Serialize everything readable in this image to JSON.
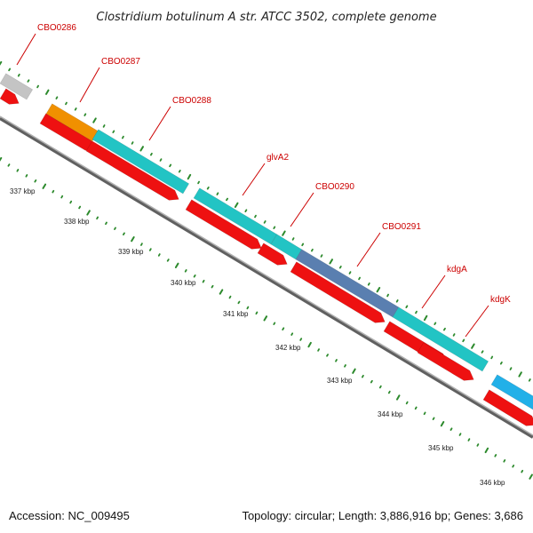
{
  "title": "Clostridium botulinum A str. ATCC 3502, complete genome",
  "footer": {
    "accession": "Accession: NC_009495",
    "summary": "Topology: circular; Length: 3,886,916 bp; Genes: 3,686"
  },
  "colors": {
    "cds": "#ee1111",
    "gene_teal": "#22c4c4",
    "gene_orange": "#f09000",
    "gene_gray": "#c4c4c4",
    "gene_blue": "#5a7fb0",
    "gene_lightblue": "#22b0e8",
    "label": "#cc0000",
    "tick": "#2d8a2d",
    "backbone": "#808080"
  },
  "genes": [
    {
      "name": "CBO0286"
    },
    {
      "name": "CBO0287"
    },
    {
      "name": "CBO0288"
    },
    {
      "name": "glvA2"
    },
    {
      "name": "CBO0290"
    },
    {
      "name": "CBO0291"
    },
    {
      "name": "kdgA"
    },
    {
      "name": "kdgK"
    }
  ],
  "scale_labels": [
    "337 kbp",
    "338 kbp",
    "339 kbp",
    "340 kbp",
    "341 kbp",
    "342 kbp",
    "343 kbp",
    "344 kbp",
    "345 kbp",
    "346 kbp"
  ]
}
